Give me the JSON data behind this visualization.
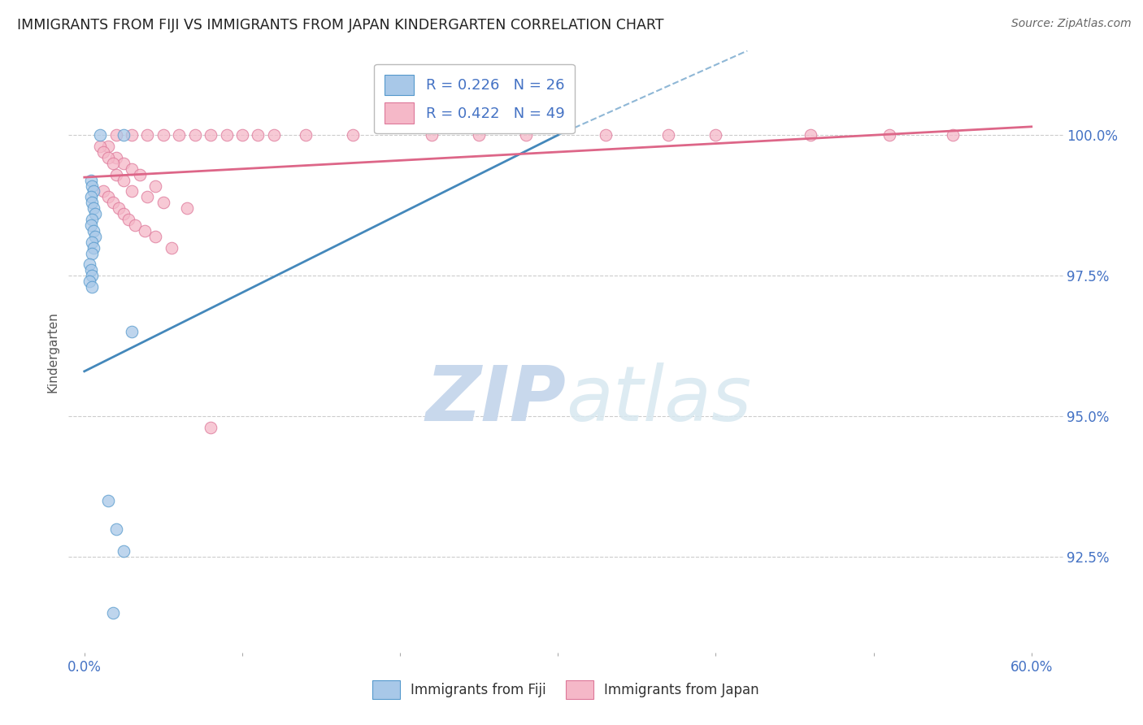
{
  "title": "IMMIGRANTS FROM FIJI VS IMMIGRANTS FROM JAPAN KINDERGARTEN CORRELATION CHART",
  "source": "Source: ZipAtlas.com",
  "ylabel": "Kindergarten",
  "ytick_labels": [
    "92.5%",
    "95.0%",
    "97.5%",
    "100.0%"
  ],
  "ytick_values": [
    92.5,
    95.0,
    97.5,
    100.0
  ],
  "xlim": [
    -1.0,
    62.0
  ],
  "ylim": [
    90.8,
    101.5
  ],
  "fiji_color": "#a8c8e8",
  "japan_color": "#f5b8c8",
  "fiji_edge_color": "#5599cc",
  "japan_edge_color": "#dd7799",
  "fiji_line_color": "#4488bb",
  "japan_line_color": "#dd6688",
  "fiji_R": 0.226,
  "fiji_N": 26,
  "japan_R": 0.422,
  "japan_N": 49,
  "legend_R_fiji": "R = 0.226",
  "legend_N_fiji": "N = 26",
  "legend_R_japan": "R = 0.422",
  "legend_N_japan": "N = 49",
  "fiji_points_x": [
    1.0,
    2.5,
    0.4,
    0.5,
    0.6,
    0.4,
    0.5,
    0.6,
    0.7,
    0.5,
    0.4,
    0.6,
    0.7,
    0.5,
    0.6,
    0.5,
    0.3,
    0.4,
    0.5,
    0.3,
    0.5,
    1.5,
    2.0,
    2.5,
    3.0,
    1.8
  ],
  "fiji_points_y": [
    100.0,
    100.0,
    99.2,
    99.1,
    99.0,
    98.9,
    98.8,
    98.7,
    98.6,
    98.5,
    98.4,
    98.3,
    98.2,
    98.1,
    98.0,
    97.9,
    97.7,
    97.6,
    97.5,
    97.4,
    97.3,
    93.5,
    93.0,
    92.6,
    96.5,
    91.5
  ],
  "japan_points_x": [
    2.0,
    3.0,
    4.0,
    5.0,
    6.0,
    7.0,
    8.0,
    9.0,
    10.0,
    11.0,
    12.0,
    14.0,
    22.0,
    28.0,
    33.0,
    40.0,
    46.0,
    51.0,
    55.0,
    1.5,
    2.0,
    2.5,
    3.0,
    3.5,
    4.5,
    1.2,
    1.5,
    1.8,
    2.2,
    2.5,
    2.8,
    3.2,
    3.8,
    4.5,
    5.5,
    1.0,
    1.2,
    1.5,
    1.8,
    2.0,
    2.5,
    3.0,
    4.0,
    5.0,
    6.5,
    8.0,
    17.0,
    25.0,
    37.0
  ],
  "japan_points_y": [
    100.0,
    100.0,
    100.0,
    100.0,
    100.0,
    100.0,
    100.0,
    100.0,
    100.0,
    100.0,
    100.0,
    100.0,
    100.0,
    100.0,
    100.0,
    100.0,
    100.0,
    100.0,
    100.0,
    99.8,
    99.6,
    99.5,
    99.4,
    99.3,
    99.1,
    99.0,
    98.9,
    98.8,
    98.7,
    98.6,
    98.5,
    98.4,
    98.3,
    98.2,
    98.0,
    99.8,
    99.7,
    99.6,
    99.5,
    99.3,
    99.2,
    99.0,
    98.9,
    98.8,
    98.7,
    94.8,
    100.0,
    100.0,
    100.0
  ],
  "background_color": "#ffffff",
  "watermark_zip": "ZIP",
  "watermark_atlas": "atlas",
  "watermark_color": "#c8d8ec"
}
